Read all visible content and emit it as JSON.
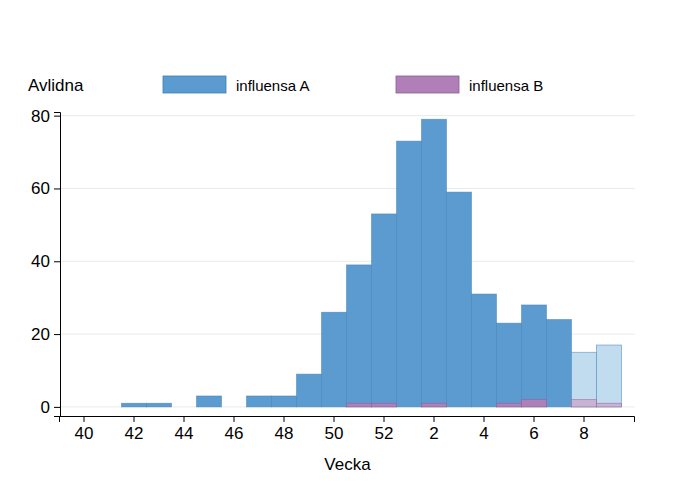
{
  "chart_data": {
    "type": "bar",
    "y_label": "Avlidna",
    "x_label": "Vecka",
    "categories": [
      "40",
      null,
      "42",
      null,
      "44",
      null,
      "46",
      null,
      "48",
      null,
      "50",
      null,
      "52",
      null,
      "2",
      null,
      "4",
      null,
      "6",
      null,
      "8",
      null
    ],
    "series": [
      {
        "name": "influensa A",
        "color": "#5b9bd0",
        "colors": [
          "#5b9bd0",
          "#5b9bd0",
          "#5b9bd0",
          "#5b9bd0",
          "#5b9bd0",
          "#5b9bd0",
          "#5b9bd0",
          "#5b9bd0",
          "#5b9bd0",
          "#5b9bd0",
          "#5b9bd0",
          "#5b9bd0",
          "#5b9bd0",
          "#5b9bd0",
          "#5b9bd0",
          "#5b9bd0",
          "#5b9bd0",
          "#5b9bd0",
          "#5b9bd0",
          "#5b9bd0",
          "#c1dbef",
          "#c1dbef"
        ],
        "values": [
          0,
          0,
          1,
          1,
          0,
          3,
          0,
          3,
          3,
          9,
          26,
          39,
          53,
          73,
          79,
          59,
          31,
          23,
          28,
          24,
          15,
          17
        ]
      },
      {
        "name": "influensa B",
        "color": "#b07fb8",
        "colors": [
          "#b07fb8",
          "#b07fb8",
          "#b07fb8",
          "#b07fb8",
          "#b07fb8",
          "#b07fb8",
          "#b07fb8",
          "#b07fb8",
          "#b07fb8",
          "#b07fb8",
          "#b07fb8",
          "#b07fb8",
          "#b07fb8",
          "#b07fb8",
          "#b07fb8",
          "#b07fb8",
          "#b07fb8",
          "#b07fb8",
          "#b07fb8",
          "#b07fb8",
          "#c9b3d3",
          "#c9b3d3"
        ],
        "values": [
          0,
          0,
          0,
          0,
          0,
          0,
          0,
          0,
          0,
          0,
          0,
          1,
          1,
          0,
          1,
          0,
          0,
          1,
          2,
          0,
          2,
          1
        ]
      }
    ],
    "ylim": [
      -2.5,
      81
    ],
    "yticks": [
      0,
      20,
      40,
      60,
      80
    ],
    "grid": true,
    "legend": "top",
    "stacked": false
  }
}
